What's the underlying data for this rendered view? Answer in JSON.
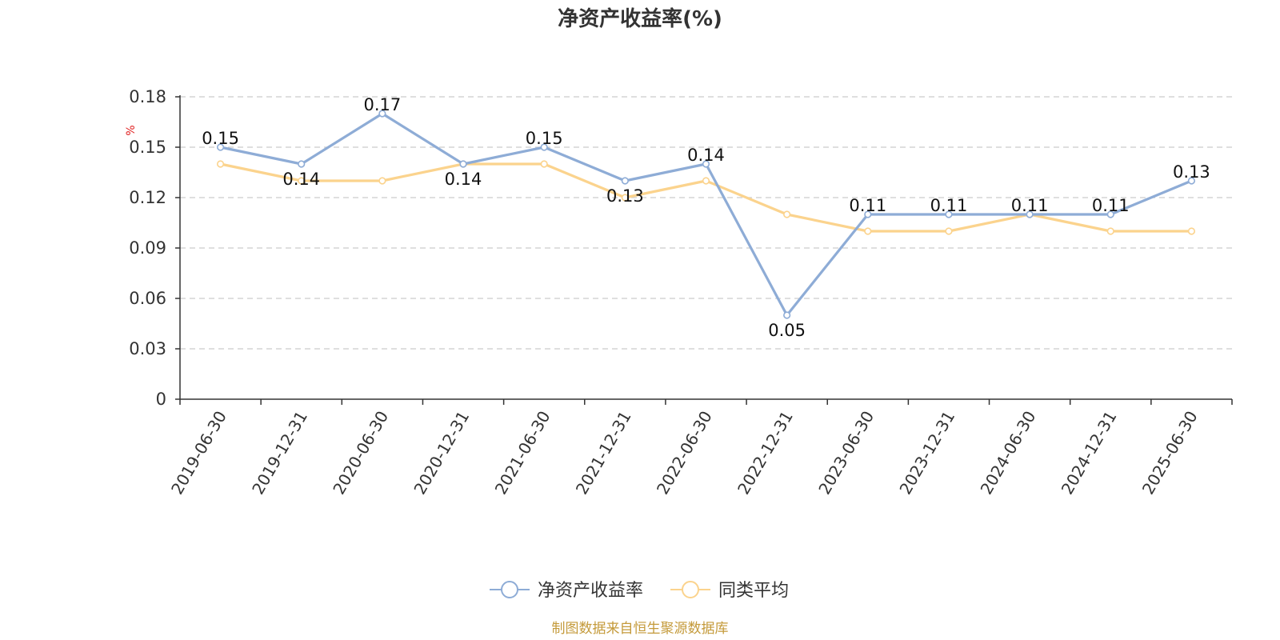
{
  "chart_data": {
    "type": "line",
    "title": "净资产收益率(%)",
    "ylabel": "%",
    "xlabel": "",
    "x": [
      "2019-06-30",
      "2019-12-31",
      "2020-06-30",
      "2020-12-31",
      "2021-06-30",
      "2021-12-31",
      "2022-06-30",
      "2022-12-31",
      "2023-06-30",
      "2023-12-31",
      "2024-06-30",
      "2024-12-31",
      "2025-06-30"
    ],
    "ylim": [
      0,
      0.18
    ],
    "yticks": [
      0,
      0.03,
      0.06,
      0.09,
      0.12,
      0.15,
      0.18
    ],
    "ytick_labels": [
      "0",
      "0.03",
      "0.06",
      "0.09",
      "0.12",
      "0.15",
      "0.18"
    ],
    "grid": true,
    "legend_position": "bottom",
    "series": [
      {
        "name": "净资产收益率",
        "color": "#8eacd6",
        "values": [
          0.15,
          0.14,
          0.17,
          0.14,
          0.15,
          0.13,
          0.14,
          0.05,
          0.11,
          0.11,
          0.11,
          0.11,
          0.13
        ],
        "show_labels": true
      },
      {
        "name": "同类平均",
        "color": "#fbd38d",
        "values": [
          0.14,
          0.13,
          0.13,
          0.14,
          0.14,
          0.12,
          0.13,
          0.11,
          0.1,
          0.1,
          0.11,
          0.1,
          0.1
        ],
        "show_labels": false
      }
    ],
    "source": "制图数据来自恒生聚源数据库"
  }
}
